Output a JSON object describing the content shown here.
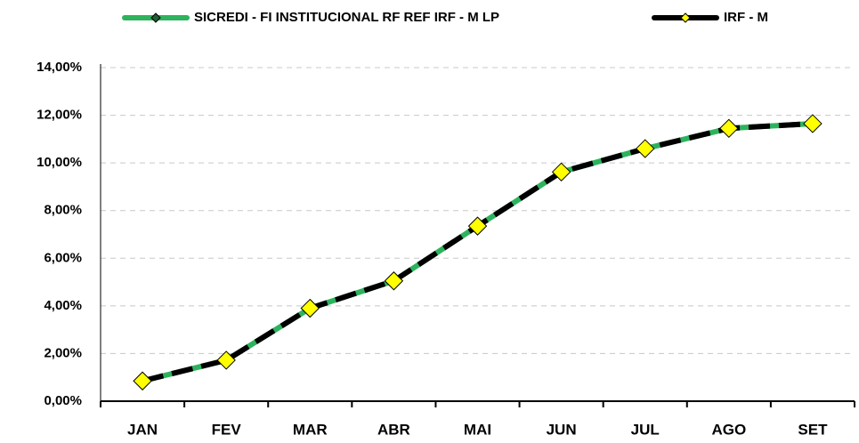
{
  "chart_data": {
    "type": "line",
    "categories": [
      "JAN",
      "FEV",
      "MAR",
      "ABR",
      "MAI",
      "JUN",
      "JUL",
      "AGO",
      "SET"
    ],
    "series": [
      {
        "name": "SICREDI - FI INSTITUCIONAL RF REF IRF - M LP",
        "color": "#2db35d",
        "marker_color": "#1f5f33",
        "values": [
          0.85,
          1.72,
          3.9,
          5.05,
          7.35,
          9.62,
          10.6,
          11.45,
          11.65
        ]
      },
      {
        "name": "IRF - M",
        "color": "#000000",
        "marker_color": "#ffff00",
        "values": [
          0.85,
          1.72,
          3.9,
          5.05,
          7.35,
          9.62,
          10.6,
          11.45,
          11.65
        ]
      }
    ],
    "ylim": [
      0,
      14
    ],
    "yticks": [
      {
        "value": 0,
        "label": "0,00%"
      },
      {
        "value": 2,
        "label": "2,00%"
      },
      {
        "value": 4,
        "label": "4,00%"
      },
      {
        "value": 6,
        "label": "6,00%"
      },
      {
        "value": 8,
        "label": "8,00%"
      },
      {
        "value": 10,
        "label": "10,00%"
      },
      {
        "value": 12,
        "label": "12,00%"
      },
      {
        "value": 14,
        "label": "14,00%"
      }
    ],
    "grid": true,
    "legend": "top"
  }
}
